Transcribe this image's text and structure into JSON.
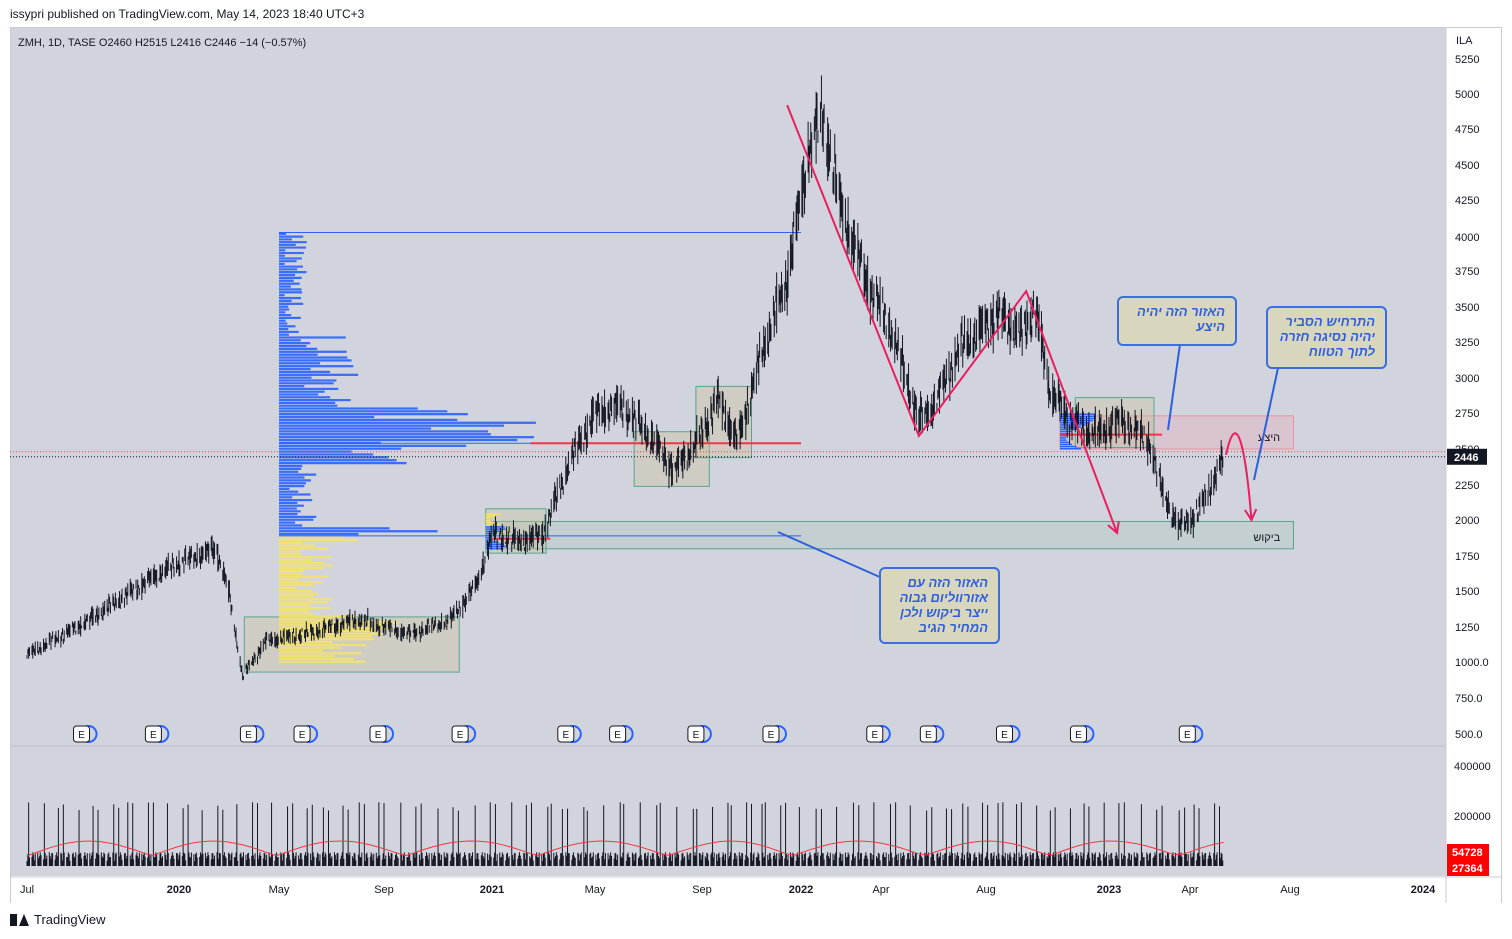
{
  "header": {
    "published_text": "issypri published on TradingView.com, May 14, 2023 18:40 UTC+3"
  },
  "legend": {
    "text": "ZMH, 1D, TASE  O2460  H2515  L2416  C2446  −14 (−0.57%)"
  },
  "footer": {
    "brand": "TradingView"
  },
  "colors": {
    "up": "#131722",
    "line_red": "#f23645",
    "profile_blue": "#2962ff",
    "profile_yellow": "#f5e36a",
    "arrow_pink": "#e91e63",
    "box_green": "#5aa48f",
    "box_pink": "#ef8fa0",
    "price_tag": "#131722",
    "volume_tag": "#ff0000"
  },
  "chart_data": {
    "type": "candlestick",
    "currency": "ILA",
    "y_ticks": [
      "5250",
      "5000",
      "4750",
      "4500",
      "4250",
      "4000",
      "3750",
      "3500",
      "3250",
      "3000",
      "2750",
      "2500",
      "2250",
      "2000",
      "1750",
      "1500",
      "1250",
      "1000.0",
      "750.0",
      "500.0"
    ],
    "y_tick_values": [
      5250,
      5000,
      4750,
      4500,
      4250,
      4000,
      3750,
      3500,
      3250,
      3000,
      2750,
      2500,
      2250,
      2000,
      1750,
      1500,
      1250,
      1000,
      750,
      500
    ],
    "x_ticks": [
      "Jul",
      "2020",
      "May",
      "Sep",
      "2021",
      "May",
      "Sep",
      "2022",
      "Apr",
      "Aug",
      "2023",
      "Apr",
      "Aug",
      "2024"
    ],
    "x_tick_dates": [
      "2019-07-01",
      "2020-01-01",
      "2020-05-01",
      "2020-09-01",
      "2021-01-01",
      "2021-05-01",
      "2021-09-01",
      "2022-01-01",
      "2022-04-01",
      "2022-08-01",
      "2023-01-01",
      "2023-04-01",
      "2023-08-01",
      "2024-01-01"
    ],
    "last_price": "2446",
    "approx_close_path": [
      {
        "date": "2019-07-01",
        "close": 1050
      },
      {
        "date": "2019-09-15",
        "close": 1300
      },
      {
        "date": "2019-12-01",
        "close": 1600
      },
      {
        "date": "2020-01-01",
        "close": 1700
      },
      {
        "date": "2020-02-15",
        "close": 1800
      },
      {
        "date": "2020-03-01",
        "close": 1500
      },
      {
        "date": "2020-03-18",
        "close": 900
      },
      {
        "date": "2020-04-15",
        "close": 1150
      },
      {
        "date": "2020-06-01",
        "close": 1200
      },
      {
        "date": "2020-08-01",
        "close": 1300
      },
      {
        "date": "2020-10-01",
        "close": 1200
      },
      {
        "date": "2020-11-15",
        "close": 1300
      },
      {
        "date": "2020-12-15",
        "close": 1550
      },
      {
        "date": "2021-01-01",
        "close": 1900
      },
      {
        "date": "2021-02-01",
        "close": 1850
      },
      {
        "date": "2021-03-01",
        "close": 1900
      },
      {
        "date": "2021-04-01",
        "close": 2400
      },
      {
        "date": "2021-05-01",
        "close": 2750
      },
      {
        "date": "2021-06-01",
        "close": 2800
      },
      {
        "date": "2021-07-01",
        "close": 2600
      },
      {
        "date": "2021-08-01",
        "close": 2350
      },
      {
        "date": "2021-09-01",
        "close": 2600
      },
      {
        "date": "2021-09-20",
        "close": 2850
      },
      {
        "date": "2021-10-15",
        "close": 2550
      },
      {
        "date": "2021-11-15",
        "close": 3200
      },
      {
        "date": "2021-12-15",
        "close": 3700
      },
      {
        "date": "2022-01-10",
        "close": 4600
      },
      {
        "date": "2022-01-25",
        "close": 4850
      },
      {
        "date": "2022-02-15",
        "close": 4200
      },
      {
        "date": "2022-03-15",
        "close": 3700
      },
      {
        "date": "2022-04-15",
        "close": 3300
      },
      {
        "date": "2022-05-15",
        "close": 2700
      },
      {
        "date": "2022-06-01",
        "close": 2800
      },
      {
        "date": "2022-07-01",
        "close": 3200
      },
      {
        "date": "2022-08-15",
        "close": 3450
      },
      {
        "date": "2022-09-15",
        "close": 3300
      },
      {
        "date": "2022-10-01",
        "close": 3500
      },
      {
        "date": "2022-10-20",
        "close": 2900
      },
      {
        "date": "2022-11-15",
        "close": 2700
      },
      {
        "date": "2022-12-15",
        "close": 2600
      },
      {
        "date": "2023-01-15",
        "close": 2700
      },
      {
        "date": "2023-02-15",
        "close": 2550
      },
      {
        "date": "2023-03-01",
        "close": 2200
      },
      {
        "date": "2023-03-20",
        "close": 1950
      },
      {
        "date": "2023-04-10",
        "close": 2050
      },
      {
        "date": "2023-05-01",
        "close": 2300
      },
      {
        "date": "2023-05-12",
        "close": 2446
      }
    ],
    "volume_ticks": [
      "400000",
      "200000"
    ],
    "volume_tick_values": [
      400000,
      200000
    ],
    "volume_tags": [
      "54728",
      "27364"
    ],
    "earnings_marker_label": "E",
    "earnings_dates": [
      "2019-09-05",
      "2019-12-01",
      "2020-03-25",
      "2020-05-28",
      "2020-08-25",
      "2020-11-26",
      "2021-03-28",
      "2021-05-27",
      "2021-08-25",
      "2021-11-25",
      "2022-03-25",
      "2022-05-26",
      "2022-08-24",
      "2022-11-24",
      "2023-03-29"
    ],
    "zones": {
      "supply_label": "היצע",
      "demand_label": "ביקוש",
      "supply": {
        "from": "2022-11-01",
        "to": "2023-08-01",
        "low": 2500,
        "high": 2730
      },
      "demand": {
        "from": "2021-01-01",
        "to": "2023-08-01",
        "low": 1800,
        "high": 1990
      }
    },
    "consolidation_boxes": [
      {
        "from": "2020-03-20",
        "to": "2020-11-25",
        "low": 930,
        "high": 1320
      },
      {
        "from": "2020-12-25",
        "to": "2021-03-05",
        "low": 1770,
        "high": 2080
      },
      {
        "from": "2021-06-15",
        "to": "2021-09-10",
        "low": 2240,
        "high": 2620
      },
      {
        "from": "2021-08-25",
        "to": "2021-11-01",
        "low": 2440,
        "high": 2940
      },
      {
        "from": "2022-11-20",
        "to": "2023-02-20",
        "low": 2510,
        "high": 2860
      }
    ],
    "horizontal_levels": [
      {
        "price": 4030,
        "from": "2020-05-01",
        "to": "2022-01-01",
        "color": "blue"
      },
      {
        "price": 2540,
        "from": "2020-05-01",
        "to": "2022-01-01",
        "color": "blue"
      },
      {
        "price": 2540,
        "from": "2021-02-15",
        "to": "2022-01-01",
        "color": "red"
      },
      {
        "price": 1890,
        "from": "2020-05-01",
        "to": "2022-01-01",
        "color": "blue"
      },
      {
        "price": 1870,
        "from": "2021-01-01",
        "to": "2021-03-10",
        "color": "red"
      },
      {
        "price": 2600,
        "from": "2022-11-01",
        "to": "2023-03-01",
        "color": "red"
      }
    ],
    "arrows": [
      {
        "points": [
          [
            "2021-12-15",
            4920
          ],
          [
            "2022-05-15",
            2590
          ],
          [
            "2022-09-20",
            3610
          ],
          [
            "2023-01-10",
            1910
          ]
        ],
        "color": "pink"
      },
      {
        "points": [
          [
            "2023-05-15",
            2460
          ],
          [
            "2023-05-28",
            2600
          ],
          [
            "2023-06-08",
            2500
          ],
          [
            "2023-06-15",
            2000
          ]
        ],
        "color": "pink",
        "curved": true
      }
    ],
    "annotations": [
      {
        "text": "האזור הזה יהיה\nהיצע"
      },
      {
        "text": "התרחיש הסביר\nיהיה נסיגה חזרה\nלתוך הטווח"
      },
      {
        "text": "האזור הזה עם\nאזורווליום גבוה\nייצר ביקוש ולכן\nהמחיר הגיב"
      }
    ]
  }
}
